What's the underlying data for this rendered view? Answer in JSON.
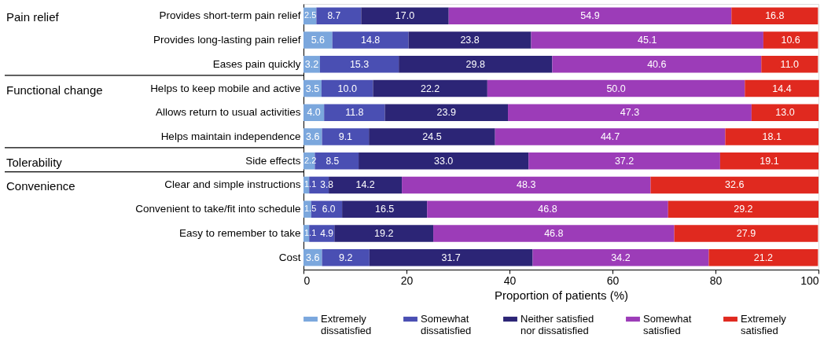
{
  "chart_data": {
    "type": "bar",
    "orientation": "horizontal",
    "stacked": true,
    "grid": false,
    "legend": "bottom",
    "xlabel": "Proportion of patients (%)",
    "xlim": [
      0,
      100
    ],
    "xticks": [
      0,
      20,
      40,
      60,
      80,
      100
    ],
    "categories": [
      "Provides short-term pain relief",
      "Provides long-lasting pain relief",
      "Eases pain quickly",
      "Helps to keep mobile and active",
      "Allows return to usual activities",
      "Helps maintain independence",
      "Side effects",
      "Clear and simple instructions",
      "Convenient to take/fit into schedule",
      "Easy to remember to take",
      "Cost"
    ],
    "annotations": [
      "Pain relief",
      "Functional change",
      "Tolerability",
      "Convenience"
    ],
    "series": [
      {
        "name": "Extremely dissatisfied",
        "color": "#7ba7dd",
        "values": [
          2.5,
          5.6,
          3.2,
          3.5,
          4.0,
          3.6,
          2.2,
          1.1,
          1.5,
          1.1,
          3.6
        ],
        "value_labels": [
          "2.5",
          "5.6",
          "3.2",
          "3.5",
          "4.0",
          "3.6",
          "2.2",
          "1.1",
          "1.5",
          "1.1",
          "3.6"
        ]
      },
      {
        "name": "Somewhat dissatisfied",
        "color": "#4a4fb3",
        "values": [
          8.7,
          14.8,
          15.3,
          10.0,
          11.8,
          9.1,
          8.5,
          3.8,
          6.0,
          4.9,
          9.2
        ],
        "value_labels": [
          "8.7",
          "14.8",
          "15.3",
          "10.0",
          "11.8",
          "9.1",
          "8.5",
          "3.8",
          "6.0",
          "4.9",
          "9.2"
        ]
      },
      {
        "name": "Neither satisfied nor dissatisfied",
        "color": "#2c2576",
        "values": [
          17.0,
          23.8,
          29.8,
          22.2,
          23.9,
          24.5,
          33.0,
          14.2,
          16.5,
          19.2,
          31.7
        ],
        "value_labels": [
          "17.0",
          "23.8",
          "29.8",
          "22.2",
          "23.9",
          "24.5",
          "33.0",
          "14.2",
          "16.5",
          "19.2",
          "31.7"
        ]
      },
      {
        "name": "Somewhat satisfied",
        "color": "#9c3cb8",
        "values": [
          54.9,
          45.1,
          40.6,
          50.0,
          47.3,
          44.7,
          37.2,
          48.3,
          46.8,
          46.8,
          34.2
        ],
        "value_labels": [
          "54.9",
          "45.1",
          "40.6",
          "50.0",
          "47.3",
          "44.7",
          "37.2",
          "48.3",
          "46.8",
          "46.8",
          "34.2"
        ]
      },
      {
        "name": "Extremely satisfied",
        "color": "#e0291f",
        "values": [
          16.8,
          10.6,
          11.0,
          14.4,
          13.0,
          18.1,
          19.1,
          32.6,
          29.2,
          27.9,
          21.2
        ],
        "value_labels": [
          "16.8",
          "10.6",
          "11.0",
          "14.4",
          "13.0",
          "18.1",
          "19.1",
          "32.6",
          "29.2",
          "27.9",
          "21.2"
        ]
      }
    ]
  }
}
